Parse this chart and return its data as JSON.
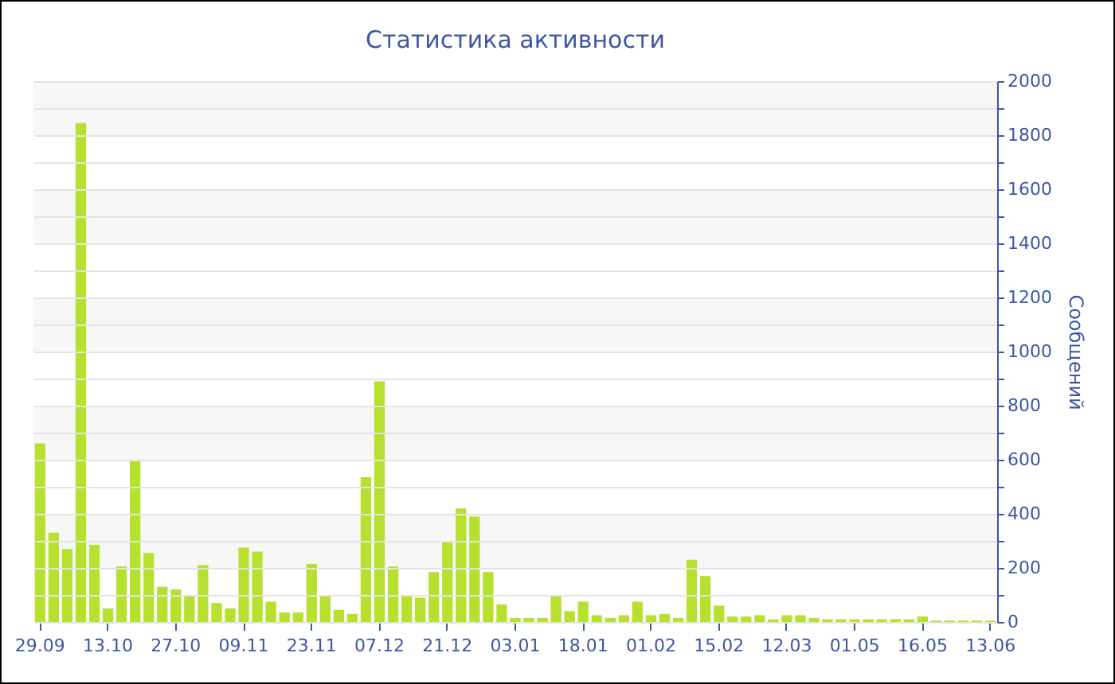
{
  "chart_data": {
    "type": "bar",
    "title": "Статистика активности",
    "ylabel": "Сообщений",
    "categories": [
      "29.09",
      null,
      null,
      null,
      null,
      "13.10",
      null,
      null,
      null,
      null,
      "27.10",
      null,
      null,
      null,
      null,
      "09.11",
      null,
      null,
      null,
      null,
      "23.11",
      null,
      null,
      null,
      null,
      "07.12",
      null,
      null,
      null,
      null,
      "21.12",
      null,
      null,
      null,
      null,
      "03.01",
      null,
      null,
      null,
      null,
      "18.01",
      null,
      null,
      null,
      null,
      "01.02",
      null,
      null,
      null,
      null,
      "15.02",
      null,
      null,
      null,
      null,
      "12.03",
      null,
      null,
      null,
      null,
      "01.05",
      null,
      null,
      null,
      null,
      "16.05",
      null,
      null,
      null,
      null,
      "13.06"
    ],
    "values": [
      660,
      330,
      270,
      1845,
      285,
      50,
      205,
      600,
      255,
      130,
      120,
      100,
      210,
      70,
      50,
      275,
      260,
      75,
      35,
      35,
      215,
      100,
      45,
      30,
      535,
      890,
      205,
      100,
      90,
      185,
      300,
      420,
      390,
      185,
      65,
      15,
      15,
      15,
      100,
      40,
      75,
      25,
      15,
      25,
      75,
      25,
      30,
      15,
      230,
      170,
      60,
      20,
      20,
      25,
      10,
      25,
      25,
      15,
      10,
      10,
      10,
      10,
      10,
      10,
      10,
      20,
      5,
      5,
      5,
      5,
      5
    ],
    "color": "#b8e02e",
    "ylim": [
      0,
      2000
    ],
    "yticks": [
      0,
      {
        "value": 100,
        "label": null
      },
      200,
      {
        "value": 300,
        "label": null
      },
      400,
      {
        "value": 500,
        "label": null
      },
      600,
      {
        "value": 700,
        "label": null
      },
      800,
      {
        "value": 900,
        "label": null
      },
      1000,
      {
        "value": 1100,
        "label": null
      },
      1200,
      {
        "value": 1300,
        "label": null
      },
      1400,
      {
        "value": 1500,
        "label": null
      },
      1600,
      {
        "value": 1700,
        "label": null
      },
      1800,
      {
        "value": 1900,
        "label": null
      },
      2000
    ],
    "grid": "y"
  }
}
